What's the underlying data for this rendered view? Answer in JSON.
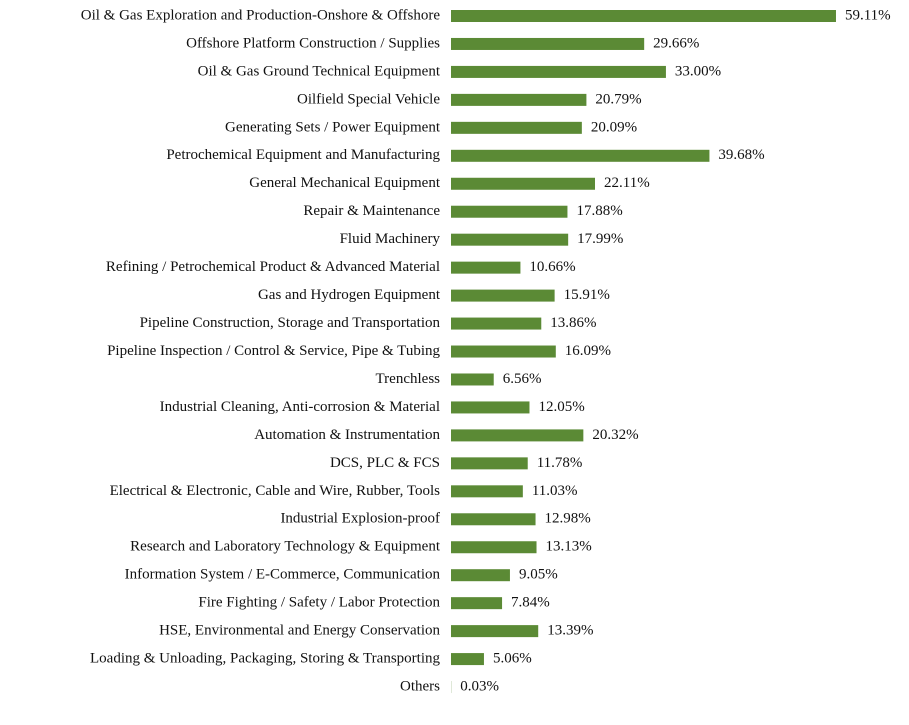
{
  "chart_data": {
    "type": "bar",
    "orientation": "horizontal",
    "color": "#5b8a35",
    "categories": [
      "Oil & Gas Exploration and Production-Onshore & Offshore",
      "Offshore Platform Construction / Supplies",
      "Oil & Gas Ground Technical Equipment",
      "Oilfield Special Vehicle",
      "Generating Sets / Power Equipment",
      "Petrochemical Equipment and Manufacturing",
      "General Mechanical Equipment",
      "Repair & Maintenance",
      "Fluid Machinery",
      "Refining / Petrochemical Product & Advanced Material",
      "Gas and Hydrogen Equipment",
      "Pipeline Construction, Storage and Transportation",
      "Pipeline Inspection / Control & Service, Pipe & Tubing",
      "Trenchless",
      "Industrial Cleaning, Anti-corrosion & Material",
      "Automation & Instrumentation",
      "DCS, PLC & FCS",
      "Electrical & Electronic, Cable and Wire, Rubber, Tools",
      "Industrial Explosion-proof",
      "Research and Laboratory Technology & Equipment",
      "Information System / E-Commerce, Communication",
      "Fire Fighting / Safety / Labor Protection",
      "HSE, Environmental and Energy Conservation",
      "Loading & Unloading, Packaging, Storing & Transporting",
      "Others"
    ],
    "values": [
      59.11,
      29.66,
      33.0,
      20.79,
      20.09,
      39.68,
      22.11,
      17.88,
      17.99,
      10.66,
      15.91,
      13.86,
      16.09,
      6.56,
      12.05,
      20.32,
      11.78,
      11.03,
      12.98,
      13.13,
      9.05,
      7.84,
      13.39,
      5.06,
      0.03
    ],
    "value_labels": [
      "59.11%",
      "29.66%",
      "33.00%",
      "20.79%",
      "20.09%",
      "39.68%",
      "22.11%",
      "17.88%",
      "17.99%",
      "10.66%",
      "15.91%",
      "13.86%",
      "16.09%",
      "6.56%",
      "12.05%",
      "20.32%",
      "11.78%",
      "11.03%",
      "12.98%",
      "13.13%",
      "9.05%",
      "7.84%",
      "13.39%",
      "5.06%",
      "0.03%"
    ]
  }
}
